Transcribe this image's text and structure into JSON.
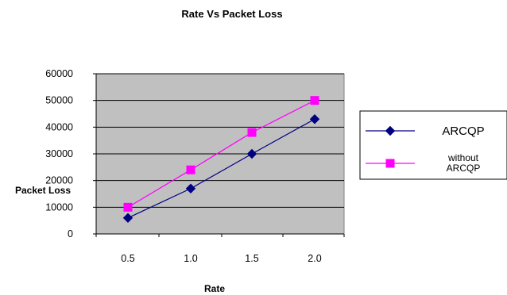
{
  "chart_data": {
    "type": "line",
    "title": "Rate Vs Packet Loss",
    "xlabel": "Rate",
    "ylabel": "Packet Loss",
    "categories": [
      "0.5",
      "1.0",
      "1.5",
      "2.0"
    ],
    "ylim": [
      0,
      60000
    ],
    "yticks": [
      "0",
      "10000",
      "20000",
      "30000",
      "40000",
      "50000",
      "60000"
    ],
    "grid": true,
    "legend_position": "right",
    "series": [
      {
        "name": "ARCQP",
        "values": [
          6000,
          17000,
          30000,
          43000
        ],
        "color": "#000080",
        "marker": "diamond"
      },
      {
        "name_lines": [
          "without",
          "ARCQP"
        ],
        "values": [
          10000,
          24000,
          38000,
          50000
        ],
        "color": "#FF00FF",
        "marker": "square"
      }
    ],
    "plot_background": "#C0C0C0"
  }
}
